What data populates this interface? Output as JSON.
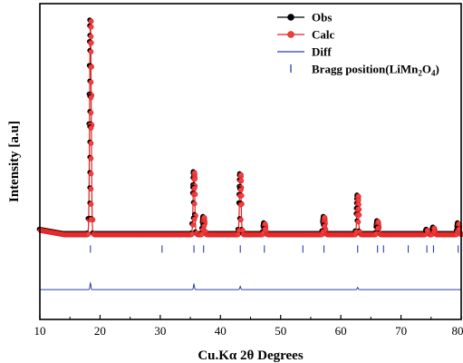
{
  "chart_data": {
    "type": "scatter",
    "xlabel": "Cu.Kα 2θ Degrees",
    "ylabel": "Intensity [a.u]",
    "xlim": [
      10,
      80
    ],
    "x_ticks": [
      10,
      20,
      30,
      40,
      50,
      60,
      70,
      80
    ],
    "y_ticks": [],
    "ylim": [
      -0.4,
      1.08
    ],
    "legend_position": "top-right",
    "legend": [
      {
        "label": "Obs",
        "style": "line-marker",
        "color": "#000000"
      },
      {
        "label": "Calc",
        "style": "line-marker",
        "color": "#e02020"
      },
      {
        "label": "Diff",
        "style": "line",
        "color": "#2c3fa8"
      },
      {
        "label_main": "Bragg position(LiMn",
        "sub1": "2",
        "mid": "O",
        "sub2": "4",
        "close": ")",
        "style": "tick",
        "color": "#2c3fa8"
      }
    ],
    "peaks": [
      {
        "x": 18.4,
        "y": 1.0
      },
      {
        "x": 35.6,
        "y": 0.29
      },
      {
        "x": 37.2,
        "y": 0.08
      },
      {
        "x": 43.3,
        "y": 0.28
      },
      {
        "x": 47.3,
        "y": 0.05
      },
      {
        "x": 57.2,
        "y": 0.08
      },
      {
        "x": 62.8,
        "y": 0.18
      },
      {
        "x": 66.1,
        "y": 0.06
      },
      {
        "x": 74.3,
        "y": 0.02
      },
      {
        "x": 75.4,
        "y": 0.03
      },
      {
        "x": 79.5,
        "y": 0.05
      }
    ],
    "baseline": 0.0,
    "bragg_positions": [
      18.4,
      30.3,
      35.6,
      37.2,
      43.3,
      47.3,
      53.7,
      57.2,
      62.8,
      66.1,
      67.1,
      71.2,
      74.3,
      75.4,
      79.5
    ],
    "bragg_y": -0.07,
    "diff_baseline": -0.26,
    "diff_spikes": [
      {
        "x": 18.4,
        "dy": 0.03
      },
      {
        "x": 35.6,
        "dy": 0.025
      },
      {
        "x": 43.3,
        "dy": 0.015
      },
      {
        "x": 62.8,
        "dy": 0.01
      }
    ],
    "colors": {
      "obs": "#000000",
      "calc": "#e02020",
      "diff": "#2c3fa8",
      "bragg": "#2c3fa8"
    }
  }
}
